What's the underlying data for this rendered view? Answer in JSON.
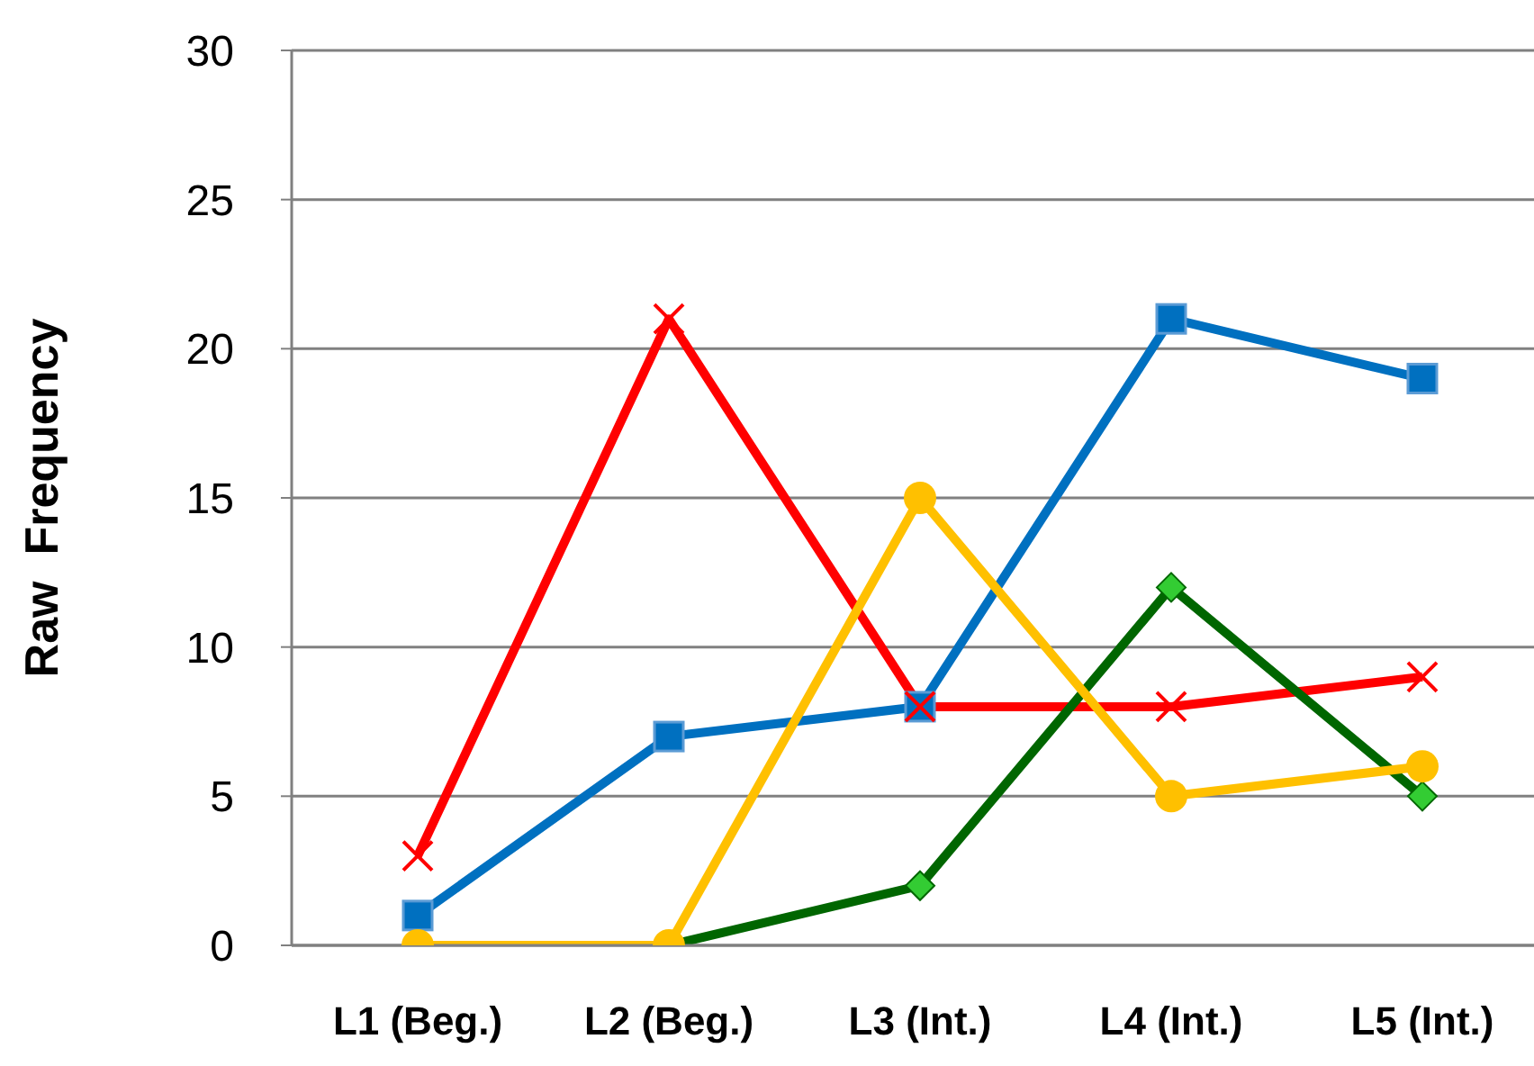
{
  "chart_data": {
    "type": "line",
    "ylabel": "Raw  Frequency",
    "categories": [
      "L1 (Beg.)",
      "L2 (Beg.)",
      "L3 (Int.)",
      "L4 (Int.)",
      "L5 (Int.)"
    ],
    "series": [
      {
        "color": "#0070c0",
        "marker": "square",
        "values": [
          1,
          7,
          8,
          21,
          19
        ]
      },
      {
        "color": "#ff0000",
        "marker": "cross",
        "values": [
          3,
          21,
          8,
          8,
          9
        ]
      },
      {
        "color": "#006600",
        "marker": "diamond",
        "values": [
          null,
          0,
          2,
          12,
          5
        ]
      },
      {
        "color": "#ffc000",
        "marker": "circle",
        "values": [
          0,
          0,
          15,
          5,
          6
        ]
      }
    ],
    "ylim": [
      0,
      30
    ],
    "yticks": [
      0,
      5,
      10,
      15,
      20,
      25,
      30
    ],
    "grid": "y",
    "legend": false
  }
}
